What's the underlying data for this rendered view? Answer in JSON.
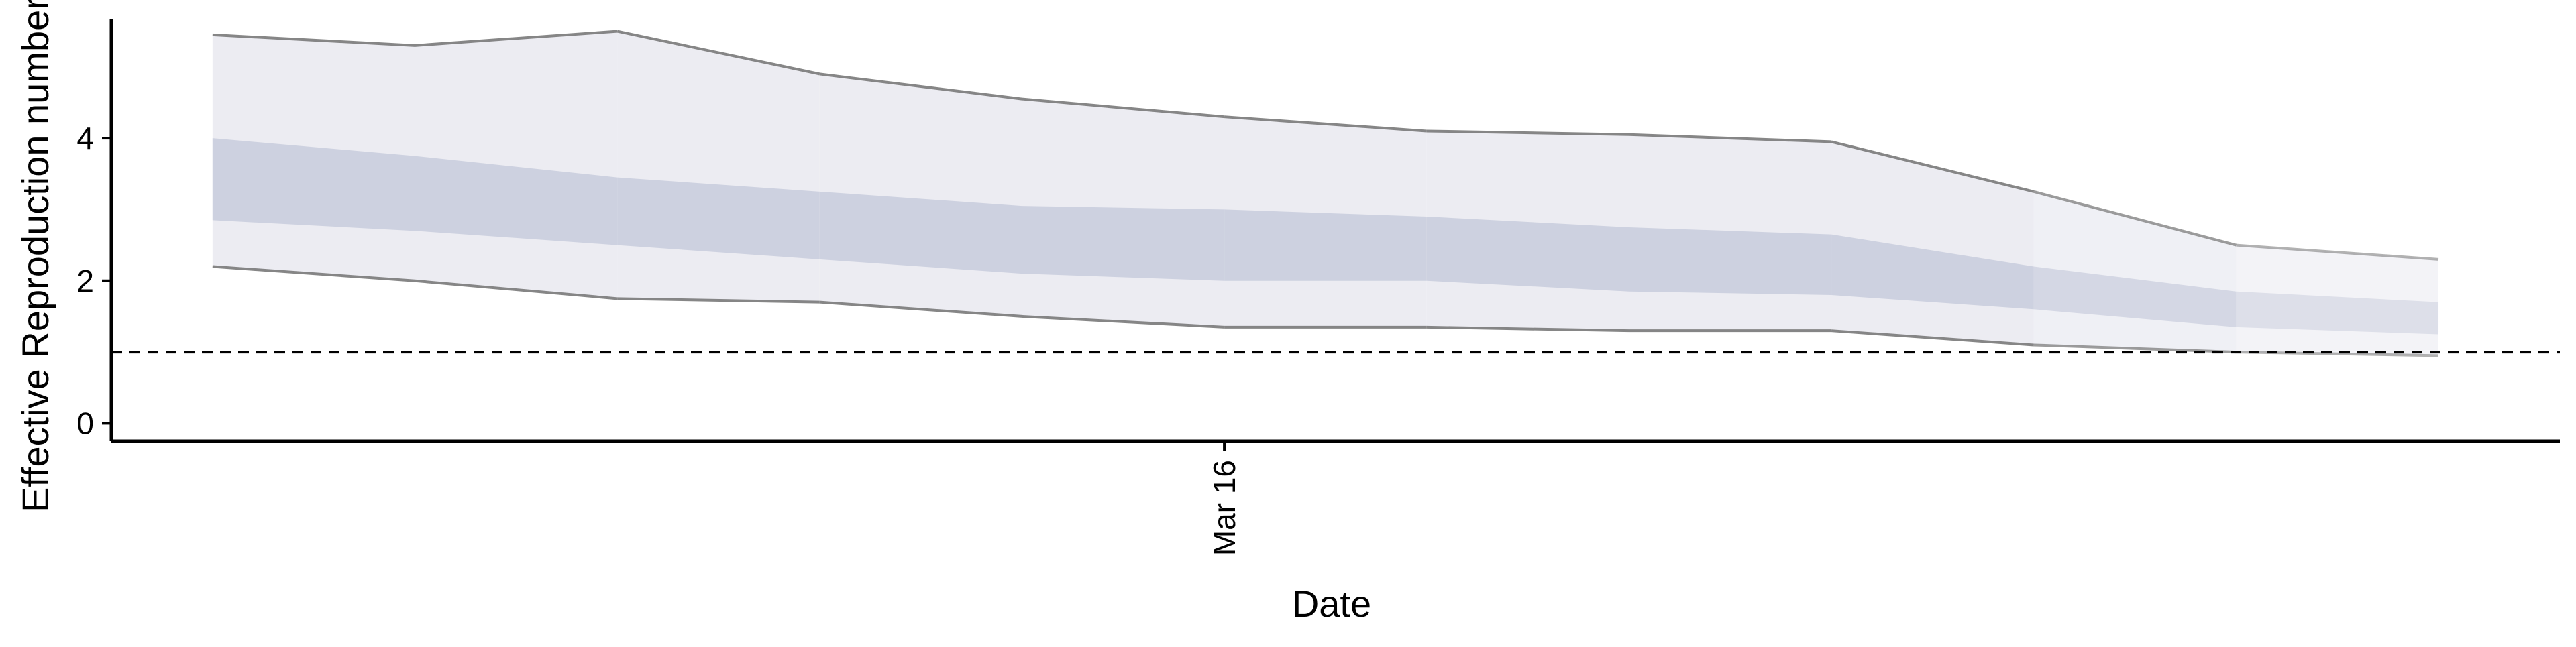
{
  "chart_data": {
    "type": "area",
    "xlabel": "Date",
    "ylabel": "Effective Reproduction number",
    "x_tick_labels": [
      {
        "x": 6,
        "label": "Mar 16"
      }
    ],
    "y_ticks": [
      0,
      2,
      4
    ],
    "xlim": [
      0.5,
      12.6
    ],
    "ylim": [
      -0.25,
      5.75
    ],
    "reference_line": {
      "y": 1,
      "style": "dashed"
    },
    "x": [
      1,
      2,
      3,
      4,
      5,
      6,
      7,
      8,
      9,
      10,
      11,
      12
    ],
    "outer_band": {
      "lower": [
        2.2,
        2.0,
        1.75,
        1.7,
        1.5,
        1.35,
        1.35,
        1.3,
        1.3,
        1.1,
        1.0,
        0.95
      ],
      "upper": [
        5.45,
        5.3,
        5.5,
        4.9,
        4.55,
        4.3,
        4.1,
        4.05,
        3.95,
        3.25,
        2.5,
        2.3
      ]
    },
    "inner_band": {
      "lower": [
        2.85,
        2.7,
        2.5,
        2.3,
        2.1,
        2.0,
        2.0,
        1.85,
        1.8,
        1.6,
        1.35,
        1.25
      ],
      "upper": [
        4.0,
        3.75,
        3.45,
        3.25,
        3.05,
        3.0,
        2.9,
        2.75,
        2.65,
        2.2,
        1.85,
        1.7
      ]
    },
    "grid": false,
    "legend": "none",
    "colors": {
      "outer_band": "#dfe0ea",
      "inner_band": "#c3c8da",
      "bound_line": "#808080",
      "axis": "#000000"
    }
  }
}
